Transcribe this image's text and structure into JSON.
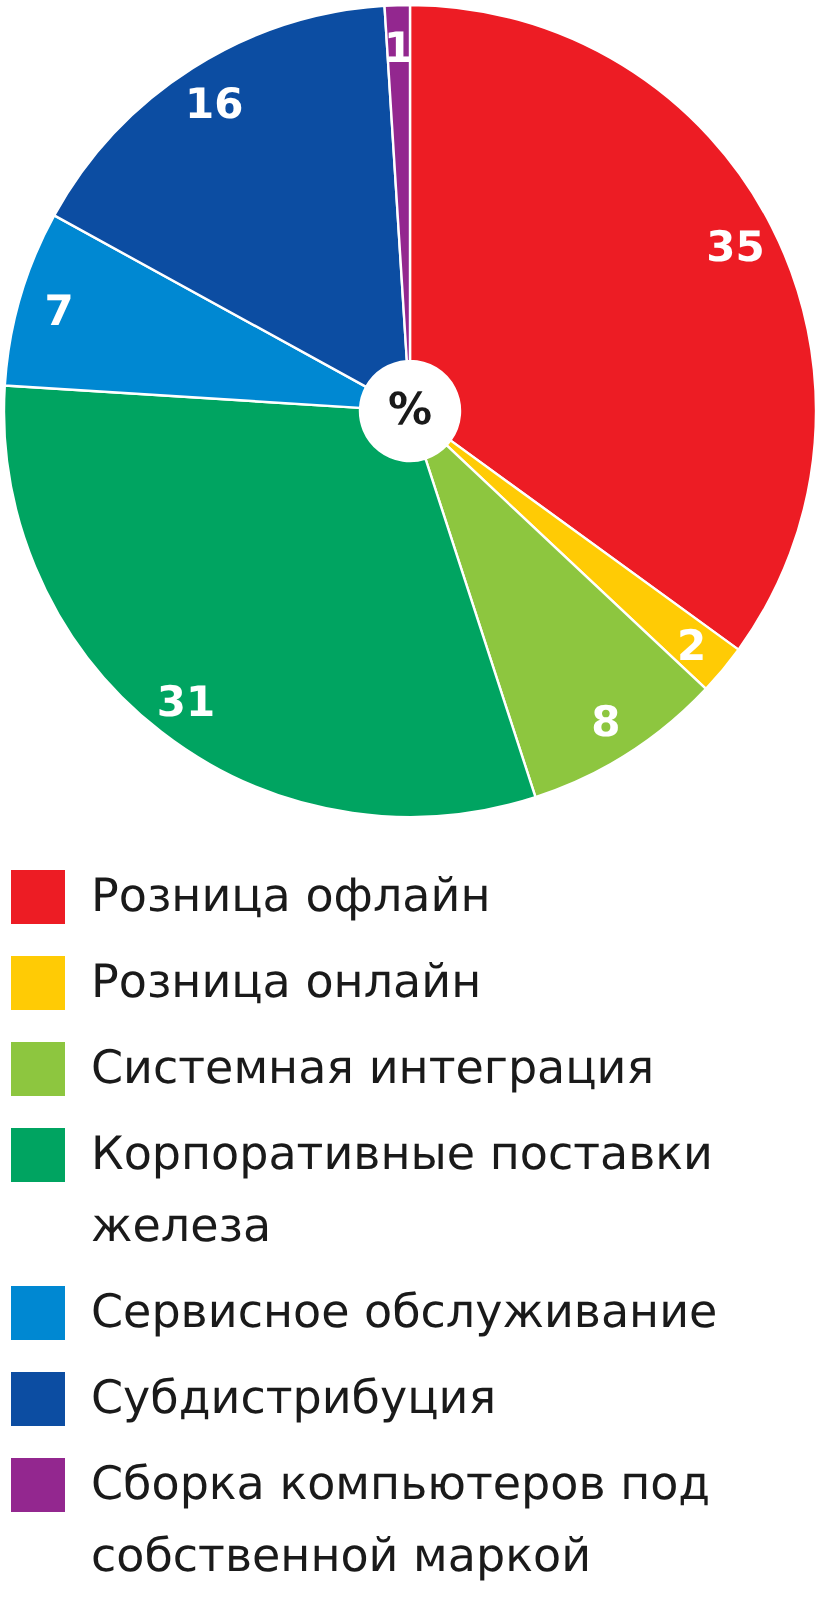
{
  "chart_data": {
    "type": "donut",
    "categories": [
      "Розница офлайн",
      "Розница онлайн",
      "Системная интеграция",
      "Корпоративные поставки железа",
      "Сервисное обслуживание",
      "Субдистрибуция",
      "Сборка компьютеров под собственной маркой"
    ],
    "values": [
      35,
      2,
      8,
      31,
      7,
      16,
      1
    ],
    "colors": [
      "#ed1c24",
      "#ffcb05",
      "#8dc63f",
      "#00a461",
      "#0088d2",
      "#0c4da2",
      "#93278f"
    ],
    "data_labels": true,
    "legend": "bottom",
    "annotations": [
      "%"
    ]
  }
}
